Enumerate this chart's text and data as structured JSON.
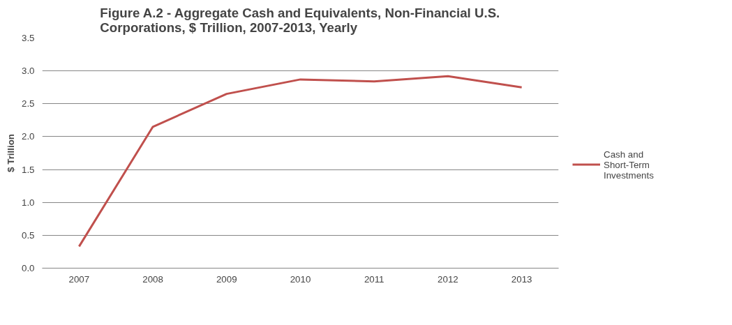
{
  "chart_data": {
    "type": "line",
    "title": "Figure A.2 - Aggregate Cash and Equivalents, Non-Financial U.S. Corporations,  $ Trillion, 2007-2013, Yearly",
    "ylabel": "$ Trillion",
    "categories": [
      "2007",
      "2008",
      "2009",
      "2010",
      "2011",
      "2012",
      "2013"
    ],
    "series": [
      {
        "name": "Cash and Short-Term Investments",
        "color": "#c0504d",
        "values": [
          0.33,
          2.15,
          2.65,
          2.87,
          2.84,
          2.92,
          2.75
        ]
      }
    ],
    "ylim": [
      0,
      3.5
    ],
    "yticks": [
      {
        "value": 0,
        "label": "0.0"
      },
      0.5,
      {
        "value": 1,
        "label": "1.0"
      },
      1.5,
      {
        "value": 2,
        "label": "2.0"
      },
      2.5,
      {
        "value": 3,
        "label": "3.0"
      },
      3.5
    ],
    "grid": "y",
    "legend": "right",
    "marker": "none",
    "line_style": "solid"
  }
}
